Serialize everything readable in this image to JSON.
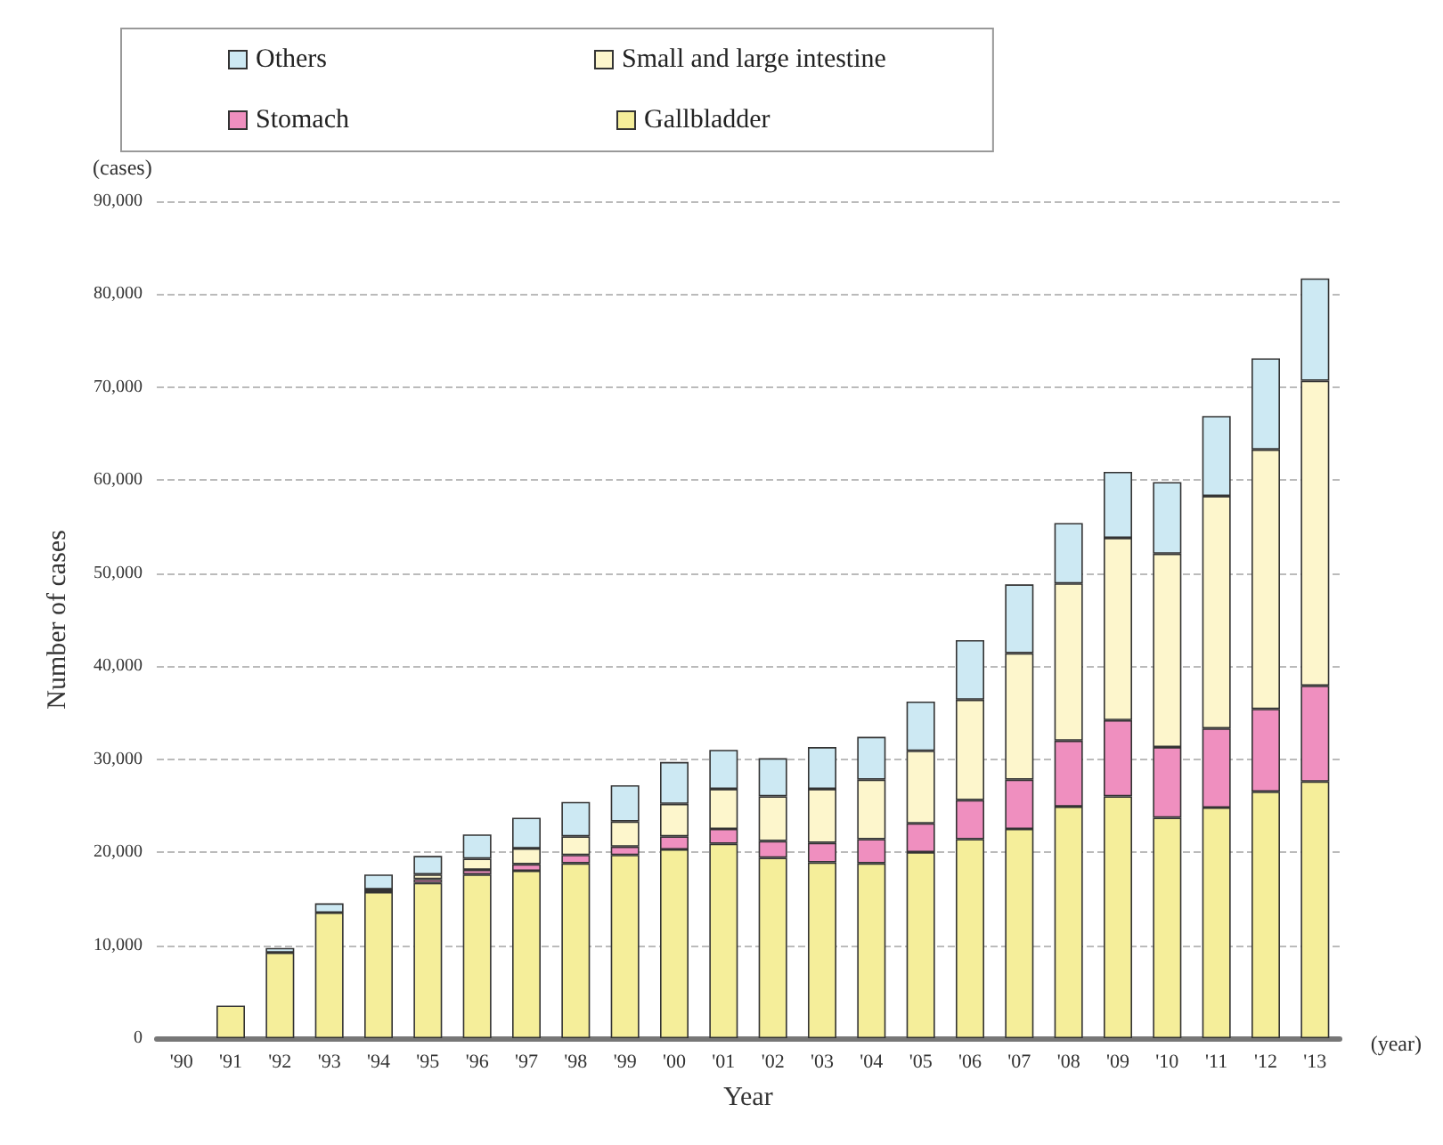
{
  "chart_data": {
    "type": "bar",
    "stacked": true,
    "xlabel": "Year",
    "ylabel": "Number of cases",
    "categories": [
      "'90",
      "'91",
      "'92",
      "'93",
      "'94",
      "'95",
      "'96",
      "'97",
      "'98",
      "'99",
      "'00",
      "'01",
      "'02",
      "'03",
      "'04",
      "'05",
      "'06",
      "'07",
      "'08",
      "'09",
      "'10",
      "'11",
      "'12",
      "'13"
    ],
    "series": [
      {
        "name": "Gallbladder",
        "color": "#f5ee9a",
        "values": [
          null,
          3500,
          9200,
          13500,
          15700,
          16700,
          17600,
          18000,
          18800,
          19700,
          20300,
          20900,
          19400,
          18900,
          18800,
          20000,
          21400,
          22500,
          24900,
          26000,
          23700,
          24800,
          26500,
          27600
        ]
      },
      {
        "name": "Stomach",
        "color": "#ef8fbf",
        "values": [
          null,
          null,
          null,
          null,
          300,
          400,
          500,
          700,
          900,
          900,
          1400,
          1600,
          1800,
          2100,
          2600,
          3100,
          4200,
          5300,
          7100,
          8200,
          7600,
          8500,
          8900,
          10300
        ]
      },
      {
        "name": "Small and large intestine",
        "color": "#fdf6cc",
        "values": [
          null,
          null,
          null,
          null,
          null,
          500,
          1200,
          1700,
          2000,
          2700,
          3500,
          4300,
          4800,
          5800,
          6400,
          7800,
          10800,
          13600,
          16900,
          19600,
          20800,
          25000,
          27900,
          32800
        ]
      },
      {
        "name": "Others",
        "color": "#cde9f3",
        "values": [
          null,
          null,
          500,
          1000,
          1600,
          2000,
          2600,
          3300,
          3700,
          3900,
          4500,
          4200,
          4100,
          4500,
          4600,
          5300,
          6400,
          7400,
          6500,
          7100,
          7700,
          8600,
          9800,
          11000
        ]
      }
    ],
    "ylim": [
      0,
      90000
    ],
    "yticks": [
      {
        "value": 0,
        "label": "0"
      },
      {
        "value": 10000,
        "label": "10,000"
      },
      {
        "value": 20000,
        "label": "20,000"
      },
      {
        "value": 30000,
        "label": "30,000"
      },
      {
        "value": 40000,
        "label": "40,000"
      },
      {
        "value": 50000,
        "label": "50,000"
      },
      {
        "value": 60000,
        "label": "60,000"
      },
      {
        "value": 70000,
        "label": "70,000"
      },
      {
        "value": 80000,
        "label": "80,000"
      },
      {
        "value": 90000,
        "label": "90,000"
      }
    ],
    "grid": "y",
    "legend": "top",
    "annotations": [
      "(cases)",
      "(year)"
    ]
  }
}
